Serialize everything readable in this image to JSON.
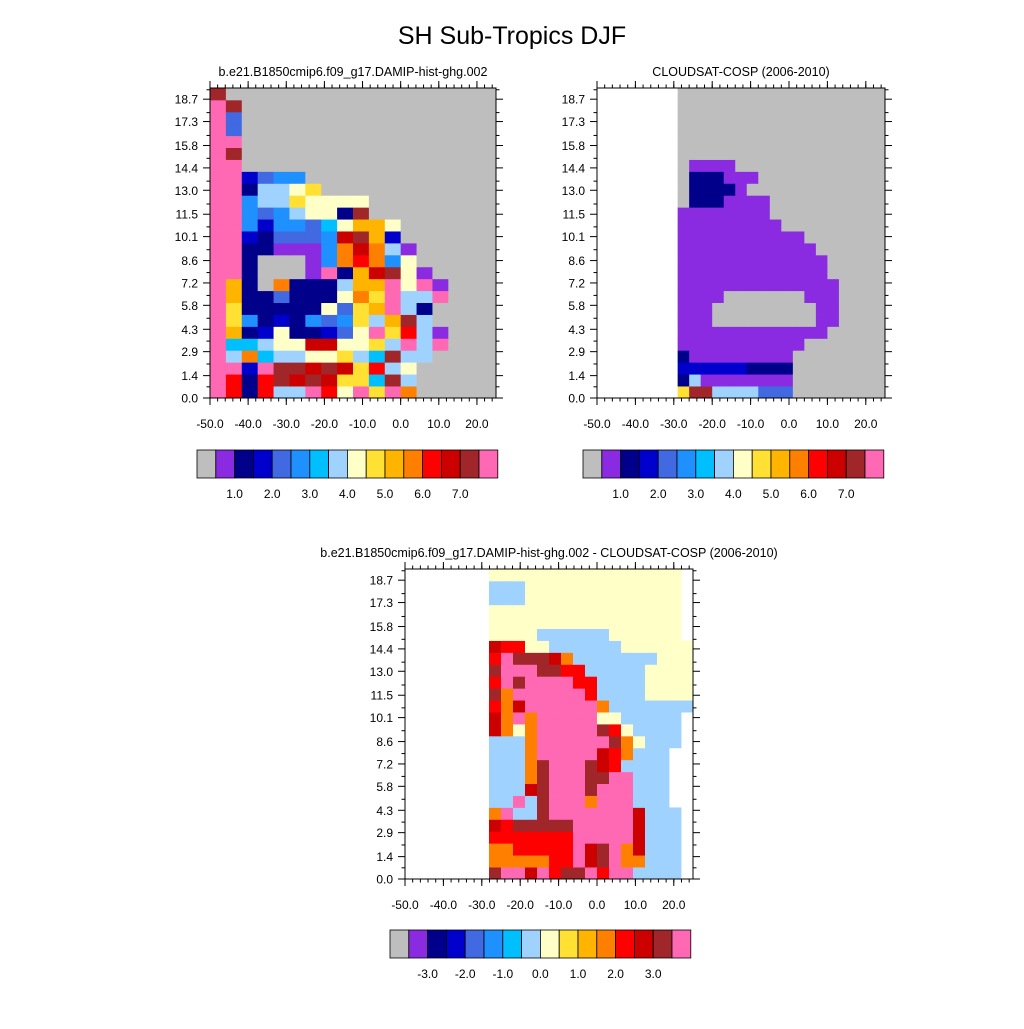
{
  "figure": {
    "title": "SH Sub-Tropics DJF"
  },
  "palette": {
    "missing": "#BEBEBE",
    "levels": [
      "#8A2BE2",
      "#00008B",
      "#0000CD",
      "#4169E1",
      "#1E90FF",
      "#00BFFF",
      "#A0D2FF",
      "#FFFFC8",
      "#FFE033",
      "#FFB400",
      "#FF8000",
      "#FF0000",
      "#CD0000",
      "#A0262A",
      "#FF69B4"
    ]
  },
  "chart_data": [
    {
      "type": "heatmap",
      "title": "b.e21.B1850cmip6.f09_g17.DAMIP-hist-ghg.002",
      "x_ticks": [
        "-50.0",
        "-40.0",
        "-30.0",
        "-20.0",
        "-10.0",
        "0.0",
        "10.0",
        "20.0"
      ],
      "y_ticks": [
        "0.0",
        "1.4",
        "2.9",
        "4.3",
        "5.8",
        "7.2",
        "8.6",
        "10.1",
        "11.5",
        "13.0",
        "14.4",
        "15.8",
        "17.3",
        "18.7"
      ],
      "colorbar_labels": [
        "1.0",
        "2.0",
        "3.0",
        "4.0",
        "5.0",
        "6.0",
        "7.0"
      ],
      "xlim": [
        -50,
        25
      ],
      "ylim": [
        0,
        19.4
      ],
      "rows_bottom_to_top": [
        "nb1b66eb7e8ea.....",
        "nb1bdcdc88fd6.....",
        "ne2eddcdc8bg7.....",
        "ngkf667786fdg6....",
        "nf5677cc778ge6n...",
        "ni12711237e8q60...",
        "nh41214348g9d6....",
        "nh111117389e61....",
        "nl1131117a8e66n...",
        "nl1.a1116l9e7e0...",
        "nn1...0e19cd70....",
        "nn1...04aba47.....",
        "nn110004aca60.....",
        "nn213334cd92......",
        "nn4244357997......",
        "nn4346771p........",
        "nn46687777........",
        "nn16678...........",
        "nn2344............",
        "nn................",
        "nd................",
        "ne................",
        "n3................",
        "n3................",
        "nx................",
        "x................."
      ]
    },
    {
      "type": "heatmap",
      "title": "CLOUDSAT-COSP (2006-2010)",
      "x_ticks": [
        "-50.0",
        "-40.0",
        "-30.0",
        "-20.0",
        "-10.0",
        "0.0",
        "10.0",
        "20.0"
      ],
      "y_ticks": [
        "0.0",
        "1.4",
        "2.9",
        "4.3",
        "5.8",
        "7.2",
        "8.6",
        "10.1",
        "11.5",
        "13.0",
        "14.4",
        "15.8",
        "17.3",
        "18.7"
      ],
      "colorbar_labels": [
        "1.0",
        "2.0",
        "3.0",
        "4.0",
        "5.0",
        "6.0",
        "7.0"
      ],
      "xlim": [
        -50,
        25
      ],
      "ylim": [
        0,
        19.4
      ],
      "rows_bottom_to_top": [
        "wwwwwww8dd6666333........",
        "wwwwwww1600000000........",
        "wwwwwww2222221111........",
        "wwwwwww1000000000........",
        "wwwwwwwo0000000000.......",
        "wwwwwwwo000000000000.....",
        "wwwwwwwo00.........00....",
        "wwwwwwwo00.........00....",
        "wwwwwwwo000.......000....",
        "wwwwwwwo0000000000000....",
        "wwwwwwwo000000000000.....",
        "wwwwwwwo000000000000.....",
        "wwwwwwwo00000000000......",
        "wwwwwwwo0000000000.......",
        "wwwwwwwo00000000.........",
        "wwwwwwwo0000000..........",
        "wwwwwww.1110000..........",
        "wwwwwww.11110............",
        "wwwwwww.111000...........",
        "wwwwwww.0000.............",
        "wwwwwww..................",
        "wwwwwww..................",
        "wwwwwww..................",
        "wwwwwww..................",
        "wwwwwww..................",
        "wwwwwww.................."
      ]
    },
    {
      "type": "heatmap",
      "title": "b.e21.B1850cmip6.f09_g17.DAMIP-hist-ghg.002 - CLOUDSAT-COSP (2006-2010)",
      "x_ticks": [
        "-50.0",
        "-40.0",
        "-30.0",
        "-20.0",
        "-10.0",
        "0.0",
        "10.0",
        "20.0"
      ],
      "y_ticks": [
        "0.0",
        "1.4",
        "2.9",
        "4.3",
        "5.8",
        "7.2",
        "8.6",
        "10.1",
        "11.5",
        "13.0",
        "14.4",
        "15.8",
        "17.3",
        "18.7"
      ],
      "colorbar_labels": [
        "-3.0",
        "-2.0",
        "-1.0",
        "0.0",
        "1.0",
        "2.0",
        "3.0"
      ],
      "xlim": [
        -50,
        25
      ],
      "ylim": [
        0,
        19.4
      ],
      "rows_bottom_to_top": [
        "wwwwwwwdeecebddebee6666",
        "wwwwwwwaaaaabbecdeaa666",
        "wwwwwwwaabbbbbecdeac666",
        "wwwwwwwbbbbbbbeeeeec666",
        "wwwwwwwcbdddddeeeeec666",
        "wwwwwwwae66deeeeeeec666",
        "wwwwwww66e6deeeaeee666",
        "wwwwwww666cdeeedeee666",
        "wwwwwww666adeeeddee666",
        "wwwwwww666adeeedcb6666",
        "wwwwwww666aeeeeecba666",
        "wwwwwww666aeeeeeeda7666",
        "wwwwwwwca7aeeeeedb76666",
        "wwwwwwwcaeaeeeee7766666",
        "wwwwwwwbaceeeeeea6666666",
        "wwwwwwwdaeeeeeeb66667777",
        "wwwwwwwbedeeeebb66667777",
        "wwwwwwwdeeeddbb666667777",
        "wwwwwwwbedddca6666666777",
        "wwwwwwwcbb77666666777777",
        "wwwwwww7777666666777777",
        "wwwwwww7777777777777777",
        "wwwwwww7777777777777777",
        "wwwwwww6667777777777777",
        "wwwwwww6667777777777777",
        "wwwwwww7777777777777777"
      ]
    }
  ]
}
